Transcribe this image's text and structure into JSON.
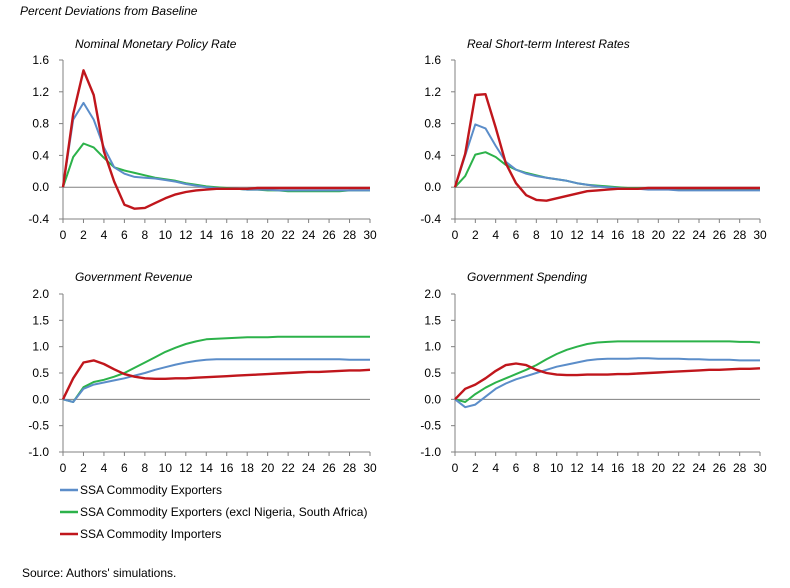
{
  "header": "Percent Deviations from Baseline",
  "source": "Source: Authors' simulations.",
  "colors": {
    "exporters": "#5b8dc9",
    "exporters_excl": "#2cb24a",
    "importers": "#c0161c",
    "axis": "#808080"
  },
  "legend": [
    {
      "key": "exporters",
      "label": "SSA Commodity Exporters"
    },
    {
      "key": "exporters_excl",
      "label": "SSA Commodity Exporters (excl Nigeria, South Africa)"
    },
    {
      "key": "importers",
      "label": "SSA Commodity Importers"
    }
  ],
  "chart_data": [
    {
      "type": "line",
      "title": "Nominal Monetary Policy Rate",
      "xlim": [
        0,
        30
      ],
      "xticks": [
        0,
        2,
        4,
        6,
        8,
        10,
        12,
        14,
        16,
        18,
        20,
        22,
        24,
        26,
        28,
        30
      ],
      "ylim": [
        -0.4,
        1.6
      ],
      "yticks": [
        "-0.4",
        "0.0",
        "0.4",
        "0.8",
        "1.2",
        "1.6"
      ],
      "x": [
        0,
        1,
        2,
        3,
        4,
        5,
        6,
        7,
        8,
        9,
        10,
        11,
        12,
        13,
        14,
        15,
        16,
        17,
        18,
        19,
        20,
        21,
        22,
        23,
        24,
        25,
        26,
        27,
        28,
        29,
        30
      ],
      "series": [
        {
          "key": "exporters",
          "name": "SSA Commodity Exporters",
          "values": [
            0,
            0.85,
            1.06,
            0.85,
            0.5,
            0.25,
            0.17,
            0.13,
            0.12,
            0.11,
            0.09,
            0.07,
            0.04,
            0.02,
            0.0,
            -0.01,
            -0.02,
            -0.02,
            -0.03,
            -0.03,
            -0.03,
            -0.04,
            -0.04,
            -0.04,
            -0.04,
            -0.04,
            -0.04,
            -0.04,
            -0.04,
            -0.04,
            -0.04
          ]
        },
        {
          "key": "exporters_excl",
          "name": "SSA Commodity Exporters (excl Nigeria, South Africa)",
          "values": [
            0,
            0.38,
            0.55,
            0.5,
            0.37,
            0.25,
            0.21,
            0.18,
            0.15,
            0.12,
            0.1,
            0.08,
            0.05,
            0.03,
            0.01,
            0.0,
            -0.01,
            -0.02,
            -0.03,
            -0.03,
            -0.04,
            -0.04,
            -0.05,
            -0.05,
            -0.05,
            -0.05,
            -0.05,
            -0.05,
            -0.04,
            -0.04,
            -0.04
          ]
        },
        {
          "key": "importers",
          "name": "SSA Commodity Importers",
          "values": [
            0,
            0.92,
            1.47,
            1.16,
            0.45,
            0.07,
            -0.22,
            -0.27,
            -0.26,
            -0.2,
            -0.14,
            -0.09,
            -0.06,
            -0.04,
            -0.03,
            -0.02,
            -0.02,
            -0.02,
            -0.02,
            -0.01,
            -0.01,
            -0.01,
            -0.01,
            -0.01,
            -0.01,
            -0.01,
            -0.01,
            -0.01,
            -0.01,
            -0.01,
            -0.01
          ]
        }
      ]
    },
    {
      "type": "line",
      "title": "Real Short-term Interest Rates",
      "xlim": [
        0,
        30
      ],
      "xticks": [
        0,
        2,
        4,
        6,
        8,
        10,
        12,
        14,
        16,
        18,
        20,
        22,
        24,
        26,
        28,
        30
      ],
      "ylim": [
        -0.4,
        1.6
      ],
      "yticks": [
        "-0.4",
        "0.0",
        "0.4",
        "0.8",
        "1.2",
        "1.6"
      ],
      "x": [
        0,
        1,
        2,
        3,
        4,
        5,
        6,
        7,
        8,
        9,
        10,
        11,
        12,
        13,
        14,
        15,
        16,
        17,
        18,
        19,
        20,
        21,
        22,
        23,
        24,
        25,
        26,
        27,
        28,
        29,
        30
      ],
      "series": [
        {
          "key": "exporters",
          "name": "SSA Commodity Exporters",
          "values": [
            0,
            0.4,
            0.79,
            0.74,
            0.52,
            0.32,
            0.22,
            0.17,
            0.14,
            0.12,
            0.1,
            0.08,
            0.05,
            0.03,
            0.01,
            0.0,
            -0.01,
            -0.02,
            -0.02,
            -0.03,
            -0.03,
            -0.03,
            -0.04,
            -0.04,
            -0.04,
            -0.04,
            -0.04,
            -0.04,
            -0.04,
            -0.04,
            -0.04
          ]
        },
        {
          "key": "exporters_excl",
          "name": "SSA Commodity Exporters (excl Nigeria, South Africa)",
          "values": [
            0,
            0.14,
            0.41,
            0.44,
            0.38,
            0.28,
            0.22,
            0.18,
            0.15,
            0.12,
            0.1,
            0.08,
            0.05,
            0.03,
            0.02,
            0.01,
            0.0,
            -0.01,
            -0.01,
            -0.02,
            -0.02,
            -0.02,
            -0.02,
            -0.02,
            -0.02,
            -0.02,
            -0.02,
            -0.02,
            -0.02,
            -0.02,
            -0.02
          ]
        },
        {
          "key": "importers",
          "name": "SSA Commodity Importers",
          "values": [
            0,
            0.42,
            1.16,
            1.17,
            0.75,
            0.3,
            0.05,
            -0.1,
            -0.16,
            -0.17,
            -0.14,
            -0.11,
            -0.08,
            -0.05,
            -0.04,
            -0.03,
            -0.02,
            -0.02,
            -0.02,
            -0.01,
            -0.01,
            -0.01,
            -0.01,
            -0.01,
            -0.01,
            -0.01,
            -0.01,
            -0.01,
            -0.01,
            -0.01,
            -0.01
          ]
        }
      ]
    },
    {
      "type": "line",
      "title": "Government Revenue",
      "xlim": [
        0,
        30
      ],
      "xticks": [
        0,
        2,
        4,
        6,
        8,
        10,
        12,
        14,
        16,
        18,
        20,
        22,
        24,
        26,
        28,
        30
      ],
      "ylim": [
        -1.0,
        2.0
      ],
      "yticks": [
        "-1.0",
        "-0.5",
        "0.0",
        "0.5",
        "1.0",
        "1.5",
        "2.0"
      ],
      "x": [
        0,
        1,
        2,
        3,
        4,
        5,
        6,
        7,
        8,
        9,
        10,
        11,
        12,
        13,
        14,
        15,
        16,
        17,
        18,
        19,
        20,
        21,
        22,
        23,
        24,
        25,
        26,
        27,
        28,
        29,
        30
      ],
      "series": [
        {
          "key": "exporters",
          "name": "SSA Commodity Exporters",
          "values": [
            0,
            -0.05,
            0.2,
            0.28,
            0.32,
            0.36,
            0.4,
            0.45,
            0.5,
            0.56,
            0.61,
            0.66,
            0.7,
            0.73,
            0.75,
            0.76,
            0.76,
            0.76,
            0.76,
            0.76,
            0.76,
            0.76,
            0.76,
            0.76,
            0.76,
            0.76,
            0.76,
            0.76,
            0.75,
            0.75,
            0.75
          ]
        },
        {
          "key": "exporters_excl",
          "name": "SSA Commodity Exporters (excl Nigeria, South Africa)",
          "values": [
            0,
            -0.05,
            0.23,
            0.33,
            0.37,
            0.43,
            0.5,
            0.6,
            0.7,
            0.8,
            0.9,
            0.98,
            1.05,
            1.1,
            1.14,
            1.15,
            1.16,
            1.17,
            1.18,
            1.18,
            1.18,
            1.19,
            1.19,
            1.19,
            1.19,
            1.19,
            1.19,
            1.19,
            1.19,
            1.19,
            1.19
          ]
        },
        {
          "key": "importers",
          "name": "SSA Commodity Importers",
          "values": [
            0,
            0.4,
            0.7,
            0.74,
            0.67,
            0.57,
            0.48,
            0.43,
            0.4,
            0.39,
            0.39,
            0.4,
            0.4,
            0.41,
            0.42,
            0.43,
            0.44,
            0.45,
            0.46,
            0.47,
            0.48,
            0.49,
            0.5,
            0.51,
            0.52,
            0.52,
            0.53,
            0.54,
            0.55,
            0.55,
            0.56
          ]
        }
      ]
    },
    {
      "type": "line",
      "title": "Government Spending",
      "xlim": [
        0,
        30
      ],
      "xticks": [
        0,
        2,
        4,
        6,
        8,
        10,
        12,
        14,
        16,
        18,
        20,
        22,
        24,
        26,
        28,
        30
      ],
      "ylim": [
        -1.0,
        2.0
      ],
      "yticks": [
        "-1.0",
        "-0.5",
        "0.0",
        "0.5",
        "1.0",
        "1.5",
        "2.0"
      ],
      "x": [
        0,
        1,
        2,
        3,
        4,
        5,
        6,
        7,
        8,
        9,
        10,
        11,
        12,
        13,
        14,
        15,
        16,
        17,
        18,
        19,
        20,
        21,
        22,
        23,
        24,
        25,
        26,
        27,
        28,
        29,
        30
      ],
      "series": [
        {
          "key": "exporters",
          "name": "SSA Commodity Exporters",
          "values": [
            0,
            -0.15,
            -0.1,
            0.05,
            0.2,
            0.3,
            0.38,
            0.44,
            0.5,
            0.56,
            0.62,
            0.66,
            0.7,
            0.74,
            0.76,
            0.77,
            0.77,
            0.77,
            0.78,
            0.78,
            0.77,
            0.77,
            0.77,
            0.76,
            0.76,
            0.75,
            0.75,
            0.75,
            0.74,
            0.74,
            0.74
          ]
        },
        {
          "key": "exporters_excl",
          "name": "SSA Commodity Exporters (excl Nigeria, South Africa)",
          "values": [
            0,
            -0.05,
            0.1,
            0.22,
            0.32,
            0.4,
            0.48,
            0.56,
            0.65,
            0.76,
            0.86,
            0.94,
            1.0,
            1.05,
            1.08,
            1.09,
            1.1,
            1.1,
            1.1,
            1.1,
            1.1,
            1.1,
            1.1,
            1.1,
            1.1,
            1.1,
            1.1,
            1.1,
            1.09,
            1.09,
            1.08
          ]
        },
        {
          "key": "importers",
          "name": "SSA Commodity Importers",
          "values": [
            0,
            0.2,
            0.28,
            0.4,
            0.54,
            0.65,
            0.68,
            0.65,
            0.56,
            0.5,
            0.47,
            0.46,
            0.46,
            0.47,
            0.47,
            0.47,
            0.48,
            0.48,
            0.49,
            0.5,
            0.51,
            0.52,
            0.53,
            0.54,
            0.55,
            0.56,
            0.56,
            0.57,
            0.58,
            0.58,
            0.59
          ]
        }
      ]
    }
  ]
}
